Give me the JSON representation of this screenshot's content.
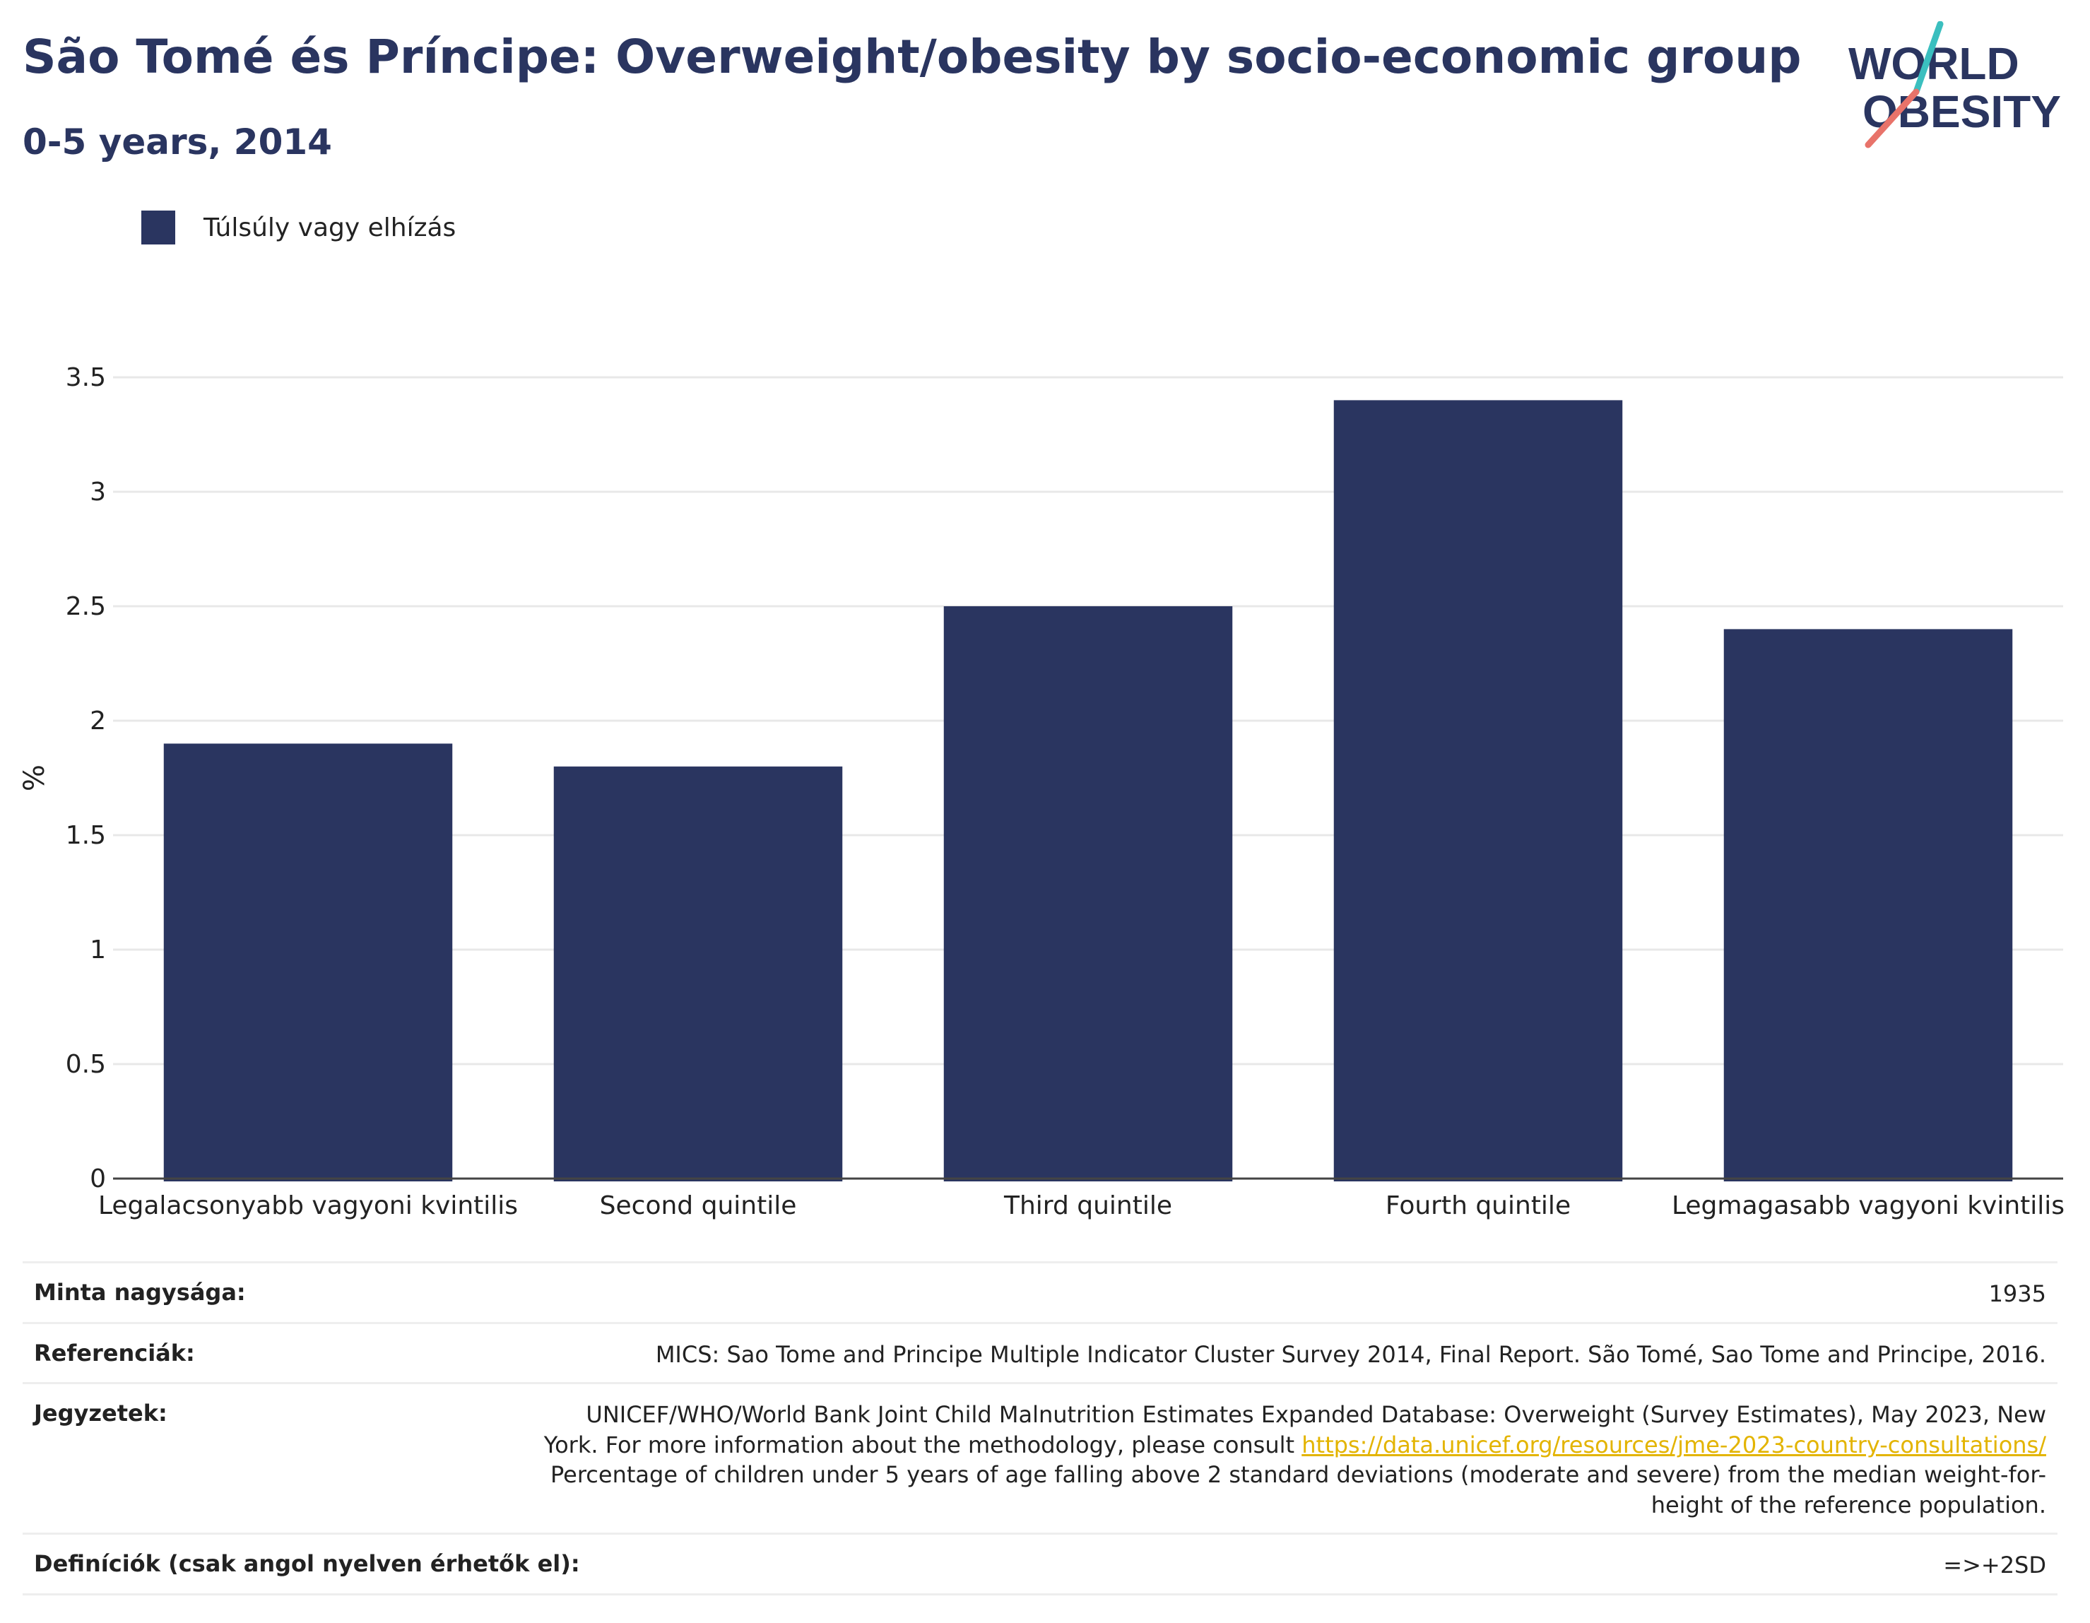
{
  "header": {
    "title": "São Tomé és Príncipe: Overweight/obesity by socio-economic group",
    "subtitle": "0-5 years, 2014",
    "logo_line1": "WORLD",
    "logo_line2": "OBESITY"
  },
  "legend": {
    "label": "Túlsúly vagy elhízás",
    "color": "#2a3560"
  },
  "chart_data": {
    "type": "bar",
    "categories": [
      "Legalacsonyabb vagyoni kvintilis",
      "Second quintile",
      "Third quintile",
      "Fourth quintile",
      "Legmagasabb vagyoni kvintilis"
    ],
    "series": [
      {
        "name": "Túlsúly vagy elhízás",
        "values": [
          1.9,
          1.8,
          2.5,
          3.4,
          2.4
        ]
      }
    ],
    "ylabel": "%",
    "xlabel": "",
    "ylim": [
      0,
      3.5
    ],
    "yticks": [
      0,
      0.5,
      1,
      1.5,
      2,
      2.5,
      3,
      3.5
    ],
    "ytick_labels": [
      "0",
      "0.5",
      "1",
      "1.5",
      "2",
      "2.5",
      "3",
      "3.5"
    ],
    "grid": true,
    "legend_position": "top-left",
    "bar_color": "#2a3560"
  },
  "info": {
    "sample_size_label": "Minta nagysága:",
    "sample_size_value": "1935",
    "references_label": "Referenciák:",
    "references_value": "MICS: Sao Tome and Principe Multiple Indicator Cluster Survey 2014, Final Report. São Tomé, Sao Tome and Principe, 2016.",
    "notes_label": "Jegyzetek:",
    "notes_line1": "UNICEF/WHO/World Bank Joint Child Malnutrition Estimates Expanded Database: Overweight (Survey Estimates), May 2023, New",
    "notes_line2": "York. For more information about the methodology, please consult ",
    "notes_link": "https://data.unicef.org/resources/jme-2023-country-consultations/",
    "notes_line3": "Percentage of children under 5 years of age falling above 2 standard deviations (moderate and severe) from the median weight-for-",
    "notes_line4": "height of the reference population.",
    "definitions_label": "Definíciók (csak angol nyelven érhetők el):",
    "definitions_value": "=>+2SD"
  },
  "colors": {
    "title": "#2a3560",
    "logo_teal": "#3bbfbf",
    "logo_coral": "#e8736a",
    "link": "#e3b400"
  }
}
